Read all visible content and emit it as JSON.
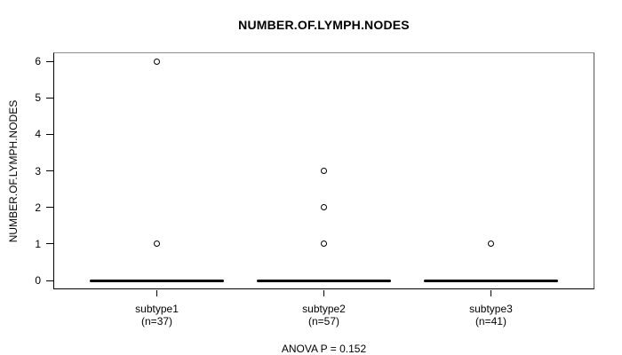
{
  "chart_data": {
    "type": "boxplot",
    "title": "NUMBER.OF.LYMPH.NODES",
    "ylabel": "NUMBER.OF.LYMPH.NODES",
    "annotation": "ANOVA P = 0.152",
    "ylim": [
      0,
      6
    ],
    "yticks": [
      0,
      1,
      2,
      3,
      4,
      5,
      6
    ],
    "grid": false,
    "groups": [
      {
        "label": "subtype1",
        "sublabel": "(n=37)",
        "n": 37,
        "median": 0,
        "box_low": 0,
        "box_high": 0,
        "outliers": [
          1,
          6
        ]
      },
      {
        "label": "subtype2",
        "sublabel": "(n=57)",
        "n": 57,
        "median": 0,
        "box_low": 0,
        "box_high": 0,
        "outliers": [
          1,
          2,
          3
        ]
      },
      {
        "label": "subtype3",
        "sublabel": "(n=41)",
        "n": 41,
        "median": 0,
        "box_low": 0,
        "box_high": 0,
        "outliers": [
          1
        ]
      }
    ],
    "colors": {
      "line": "#000000",
      "frame_top": "#8f8f8f",
      "frame_right": "#545454",
      "background": "#ffffff"
    }
  }
}
